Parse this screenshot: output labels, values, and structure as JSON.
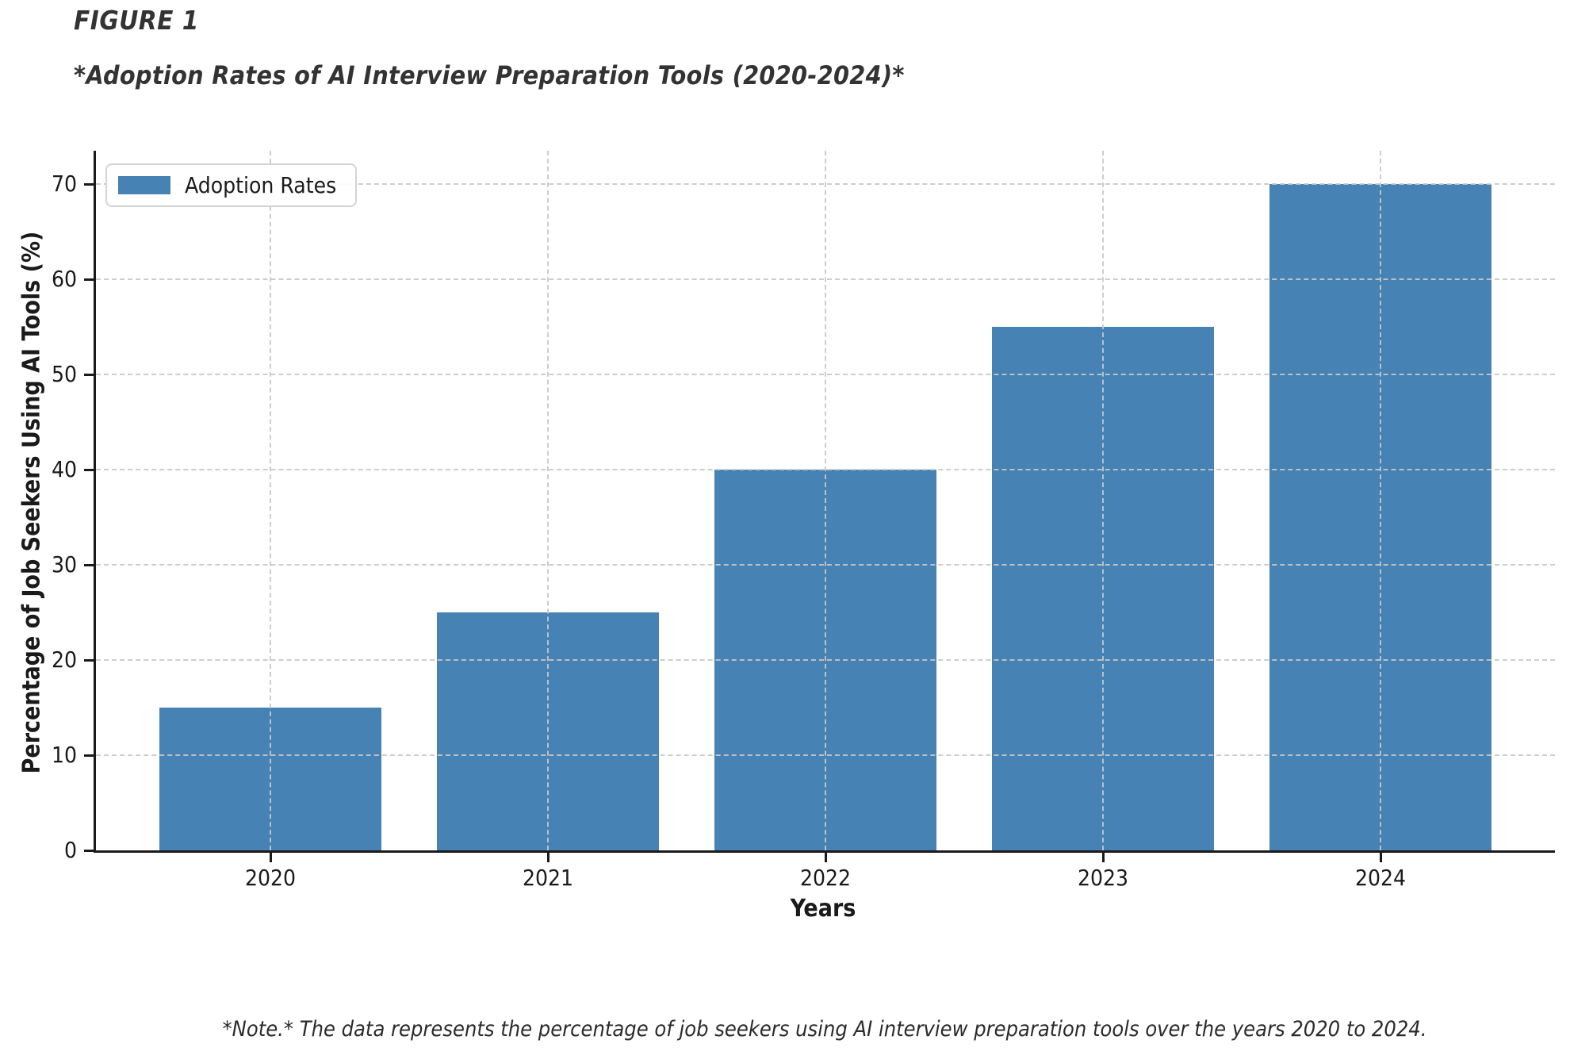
{
  "figure": {
    "label": "FIGURE 1",
    "title": "*Adoption Rates of AI Interview Preparation Tools (2020-2024)*",
    "note": "*Note.* The data represents the percentage of job seekers using AI interview preparation tools over the years 2020 to 2024."
  },
  "chart_data": {
    "type": "bar",
    "categories": [
      "2020",
      "2021",
      "2022",
      "2023",
      "2024"
    ],
    "values": [
      15,
      25,
      40,
      55,
      70
    ],
    "series": [
      {
        "name": "Adoption Rates",
        "values": [
          15,
          25,
          40,
          55,
          70
        ]
      }
    ],
    "title": "*Adoption Rates of AI Interview Preparation Tools (2020-2024)*",
    "xlabel": "Years",
    "ylabel": "Percentage of Job Seekers Using AI Tools (%)",
    "ylim": [
      0,
      73.5
    ],
    "yticks": [
      0,
      10,
      20,
      30,
      40,
      50,
      60,
      70
    ],
    "grid": "dashed both axes, drawn above bars",
    "legend": {
      "label": "Adoption Rates",
      "position": "upper left"
    },
    "colors": {
      "bar": "#4682B4",
      "grid": "#c8c8c8",
      "axis": "#1a1a1a",
      "title_text": "#333333"
    }
  }
}
